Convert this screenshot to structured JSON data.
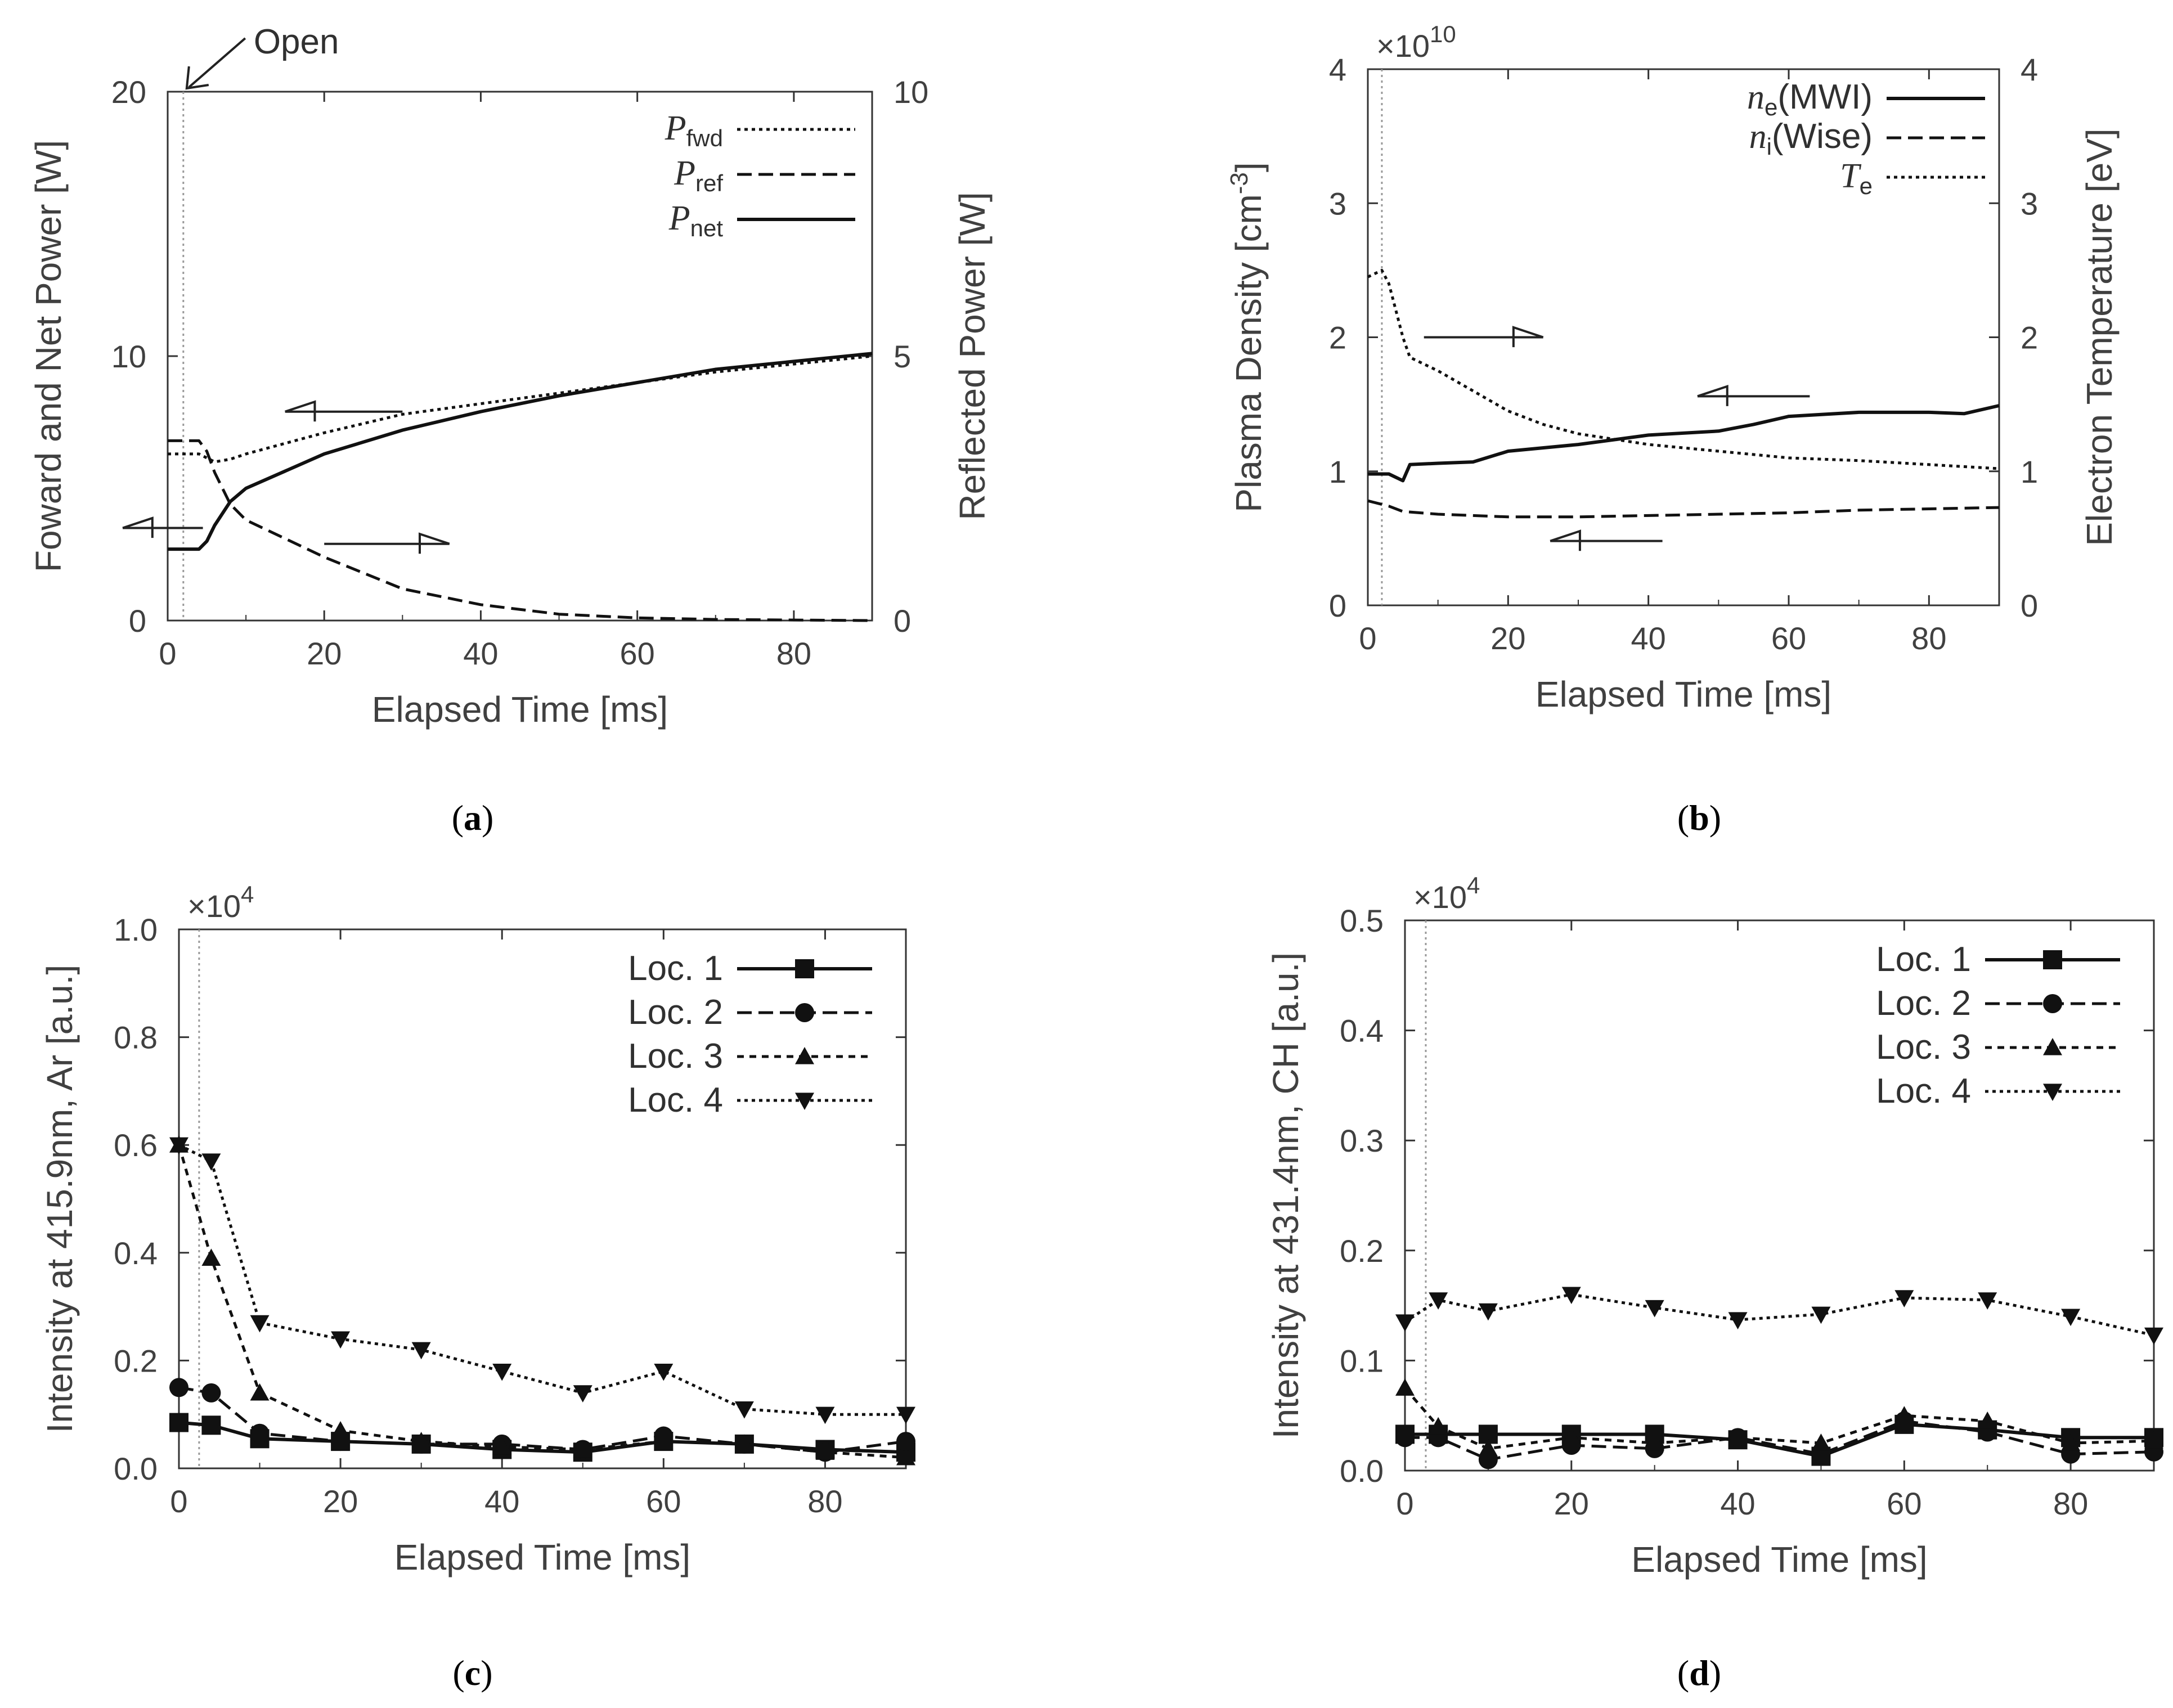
{
  "chart_data": [
    {
      "id": "a",
      "type": "line",
      "caption": "a",
      "xlabel": "Elapsed Time [ms]",
      "ylabel": "Foward and Net Power [W]",
      "y2label": "Reflected Power [W]",
      "xlim": [
        0,
        90
      ],
      "ylim": [
        0,
        20
      ],
      "y2lim": [
        0,
        10
      ],
      "xticks": [
        "0",
        "20",
        "40",
        "60",
        "80"
      ],
      "yticks": [
        "0",
        "10",
        "20"
      ],
      "y2ticks": [
        "0",
        "5",
        "10"
      ],
      "annotation": "Open",
      "open_time": 2,
      "legend": [
        {
          "sym": "P",
          "sub": "fwd"
        },
        {
          "sym": "P",
          "sub": "ref"
        },
        {
          "sym": "P",
          "sub": "net"
        }
      ],
      "series": [
        {
          "name": "P_fwd",
          "axis": "left",
          "style": "dotted",
          "x": [
            0,
            4,
            6,
            8,
            10,
            20,
            30,
            40,
            50,
            60,
            70,
            80,
            90
          ],
          "y": [
            6.3,
            6.3,
            6.0,
            6.1,
            6.3,
            7.1,
            7.8,
            8.2,
            8.6,
            9.0,
            9.4,
            9.7,
            10.0
          ]
        },
        {
          "name": "P_ref",
          "axis": "right",
          "style": "dashed",
          "x": [
            0,
            4,
            5,
            6,
            8,
            10,
            20,
            30,
            40,
            50,
            60,
            70,
            80,
            90
          ],
          "y": [
            3.4,
            3.4,
            3.2,
            2.8,
            2.2,
            1.9,
            1.2,
            0.6,
            0.3,
            0.12,
            0.05,
            0.02,
            0.01,
            0.0
          ]
        },
        {
          "name": "P_net",
          "axis": "left",
          "style": "solid",
          "x": [
            0,
            4,
            5,
            6,
            8,
            10,
            20,
            30,
            40,
            50,
            60,
            70,
            80,
            90
          ],
          "y": [
            2.7,
            2.7,
            3.0,
            3.6,
            4.5,
            5.0,
            6.3,
            7.2,
            7.9,
            8.5,
            9.0,
            9.5,
            9.8,
            10.1
          ]
        }
      ]
    },
    {
      "id": "b",
      "type": "line",
      "caption": "b",
      "xlabel": "Elapsed Time [ms]",
      "ylabel_main": "Plasma Density [cm",
      "ylabel_sup": "-3",
      "ylabel_end": "]",
      "y2label": "Electron Temperature [eV]",
      "multiplier_base": "×10",
      "multiplier_exp": "10",
      "xlim": [
        0,
        90
      ],
      "ylim": [
        0,
        4
      ],
      "y2lim": [
        0,
        4
      ],
      "xticks": [
        "0",
        "20",
        "40",
        "60",
        "80"
      ],
      "yticks": [
        "0",
        "1",
        "2",
        "3",
        "4"
      ],
      "y2ticks": [
        "0",
        "1",
        "2",
        "3",
        "4"
      ],
      "open_time": 2,
      "legend": [
        {
          "sym": "n",
          "sub": "e",
          "tail": "(MWI)"
        },
        {
          "sym": "n",
          "sub": "i",
          "tail": "(Wise)"
        },
        {
          "sym": "T",
          "sub": "e",
          "tail": ""
        }
      ],
      "series": [
        {
          "name": "n_e (MWI)",
          "axis": "left",
          "style": "solid",
          "x": [
            0,
            3,
            5,
            6,
            10,
            15,
            20,
            30,
            40,
            50,
            55,
            60,
            70,
            80,
            85,
            90
          ],
          "y": [
            0.98,
            0.98,
            0.93,
            1.05,
            1.06,
            1.07,
            1.15,
            1.2,
            1.27,
            1.3,
            1.35,
            1.41,
            1.44,
            1.44,
            1.43,
            1.49
          ]
        },
        {
          "name": "n_i (Wise)",
          "axis": "left",
          "style": "dashed",
          "x": [
            0,
            3,
            5,
            10,
            20,
            30,
            40,
            50,
            60,
            70,
            80,
            90
          ],
          "y": [
            0.78,
            0.74,
            0.7,
            0.68,
            0.66,
            0.66,
            0.67,
            0.68,
            0.69,
            0.71,
            0.72,
            0.73
          ]
        },
        {
          "name": "T_e",
          "axis": "right",
          "style": "dotted",
          "x": [
            0,
            2,
            3,
            4,
            5,
            6,
            8,
            10,
            15,
            20,
            25,
            30,
            40,
            50,
            60,
            70,
            80,
            90
          ],
          "y": [
            2.45,
            2.5,
            2.4,
            2.2,
            2.0,
            1.85,
            1.8,
            1.75,
            1.6,
            1.45,
            1.35,
            1.28,
            1.2,
            1.15,
            1.1,
            1.08,
            1.05,
            1.02
          ]
        }
      ]
    },
    {
      "id": "c",
      "type": "line",
      "caption": "c",
      "xlabel": "Elapsed Time [ms]",
      "ylabel": "Intensity at 415.9nm, Ar [a.u.]",
      "multiplier_base": "×10",
      "multiplier_exp": "4",
      "xlim": [
        0,
        90
      ],
      "ylim": [
        0,
        1.0
      ],
      "xticks": [
        "0",
        "20",
        "40",
        "60",
        "80"
      ],
      "yticks": [
        "0.0",
        "0.2",
        "0.4",
        "0.6",
        "0.8",
        "1.0"
      ],
      "open_time": 2.5,
      "legend": [
        "Loc. 1",
        "Loc. 2",
        "Loc. 3",
        "Loc. 4"
      ],
      "series": [
        {
          "name": "Loc. 1",
          "style": "solid",
          "marker": "square",
          "x": [
            0,
            4,
            10,
            20,
            30,
            40,
            50,
            60,
            70,
            80,
            90
          ],
          "y": [
            0.085,
            0.08,
            0.055,
            0.05,
            0.045,
            0.035,
            0.03,
            0.05,
            0.045,
            0.035,
            0.03
          ]
        },
        {
          "name": "Loc. 2",
          "style": "dashed",
          "marker": "circle",
          "x": [
            0,
            4,
            10,
            20,
            30,
            40,
            50,
            60,
            70,
            80,
            90
          ],
          "y": [
            0.15,
            0.14,
            0.065,
            0.05,
            0.045,
            0.045,
            0.035,
            0.06,
            0.045,
            0.03,
            0.05
          ]
        },
        {
          "name": "Loc. 3",
          "style": "dotted-dense",
          "marker": "triangle-up",
          "x": [
            0,
            4,
            10,
            20,
            30,
            40,
            50,
            60,
            70,
            80,
            90
          ],
          "y": [
            0.6,
            0.39,
            0.14,
            0.07,
            0.05,
            0.04,
            0.035,
            0.05,
            0.045,
            0.03,
            0.02
          ]
        },
        {
          "name": "Loc. 4",
          "style": "dotted",
          "marker": "triangle-down",
          "x": [
            0,
            4,
            10,
            20,
            30,
            40,
            50,
            60,
            70,
            80,
            90
          ],
          "y": [
            0.6,
            0.57,
            0.27,
            0.24,
            0.22,
            0.18,
            0.14,
            0.18,
            0.11,
            0.1,
            0.1
          ]
        }
      ]
    },
    {
      "id": "d",
      "type": "line",
      "caption": "d",
      "xlabel": "Elapsed Time [ms]",
      "ylabel": "Intensity at 431.4nm, CH [a.u.]",
      "multiplier_base": "×10",
      "multiplier_exp": "4",
      "xlim": [
        0,
        90
      ],
      "ylim": [
        0,
        0.5
      ],
      "xticks": [
        "0",
        "20",
        "40",
        "60",
        "80"
      ],
      "yticks": [
        "0.0",
        "0.1",
        "0.2",
        "0.3",
        "0.4",
        "0.5"
      ],
      "open_time": 2.5,
      "legend": [
        "Loc. 1",
        "Loc. 2",
        "Loc. 3",
        "Loc. 4"
      ],
      "series": [
        {
          "name": "Loc. 1",
          "style": "solid",
          "marker": "square",
          "x": [
            0,
            4,
            10,
            20,
            30,
            40,
            50,
            60,
            70,
            80,
            90
          ],
          "y": [
            0.033,
            0.033,
            0.033,
            0.033,
            0.033,
            0.028,
            0.013,
            0.042,
            0.037,
            0.03,
            0.03
          ]
        },
        {
          "name": "Loc. 2",
          "style": "dashed",
          "marker": "circle",
          "x": [
            0,
            4,
            10,
            20,
            30,
            40,
            50,
            60,
            70,
            80,
            90
          ],
          "y": [
            0.03,
            0.03,
            0.01,
            0.023,
            0.02,
            0.03,
            0.015,
            0.045,
            0.035,
            0.015,
            0.017
          ]
        },
        {
          "name": "Loc. 3",
          "style": "dotted-dense",
          "marker": "triangle-up",
          "x": [
            0,
            4,
            10,
            20,
            30,
            40,
            50,
            60,
            70,
            80,
            90
          ],
          "y": [
            0.075,
            0.04,
            0.02,
            0.03,
            0.025,
            0.03,
            0.025,
            0.05,
            0.045,
            0.025,
            0.027
          ]
        },
        {
          "name": "Loc. 4",
          "style": "dotted",
          "marker": "triangle-down",
          "x": [
            0,
            4,
            10,
            20,
            30,
            40,
            50,
            60,
            70,
            80,
            90
          ],
          "y": [
            0.135,
            0.155,
            0.145,
            0.16,
            0.148,
            0.137,
            0.142,
            0.157,
            0.155,
            0.14,
            0.123
          ]
        }
      ]
    }
  ]
}
